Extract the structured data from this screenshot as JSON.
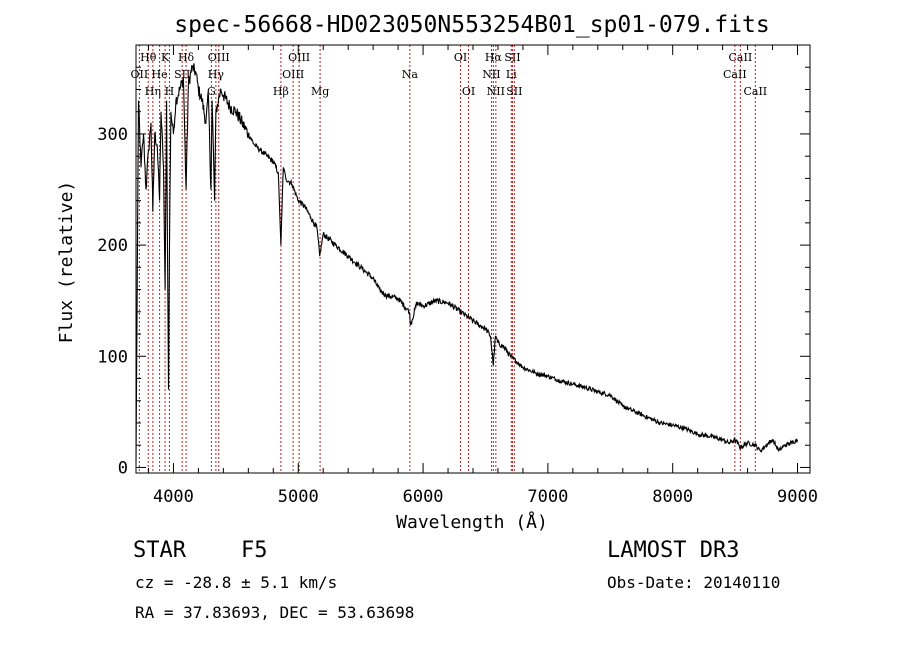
{
  "chart_data": {
    "type": "line",
    "title": "spec-56668-HD023050N553254B01_sp01-079.fits",
    "xlabel": "Wavelength (Å)",
    "ylabel": "Flux (relative)",
    "xlim": [
      3700,
      9100
    ],
    "ylim": [
      -5,
      380
    ],
    "xticks": [
      4000,
      5000,
      6000,
      7000,
      8000,
      9000
    ],
    "yticks": [
      0,
      100,
      200,
      300
    ],
    "grid": false,
    "line_color": "#000000",
    "marker_color": "#b22222",
    "series": [
      {
        "name": "spectrum",
        "x": [
          3700,
          3720,
          3740,
          3760,
          3780,
          3800,
          3820,
          3835,
          3850,
          3870,
          3889,
          3900,
          3920,
          3933,
          3945,
          3960,
          3968,
          3980,
          4000,
          4020,
          4050,
          4080,
          4101,
          4120,
          4150,
          4180,
          4200,
          4230,
          4260,
          4280,
          4300,
          4310,
          4330,
          4340,
          4360,
          4380,
          4400,
          4450,
          4500,
          4550,
          4600,
          4650,
          4700,
          4750,
          4800,
          4840,
          4861,
          4880,
          4900,
          4950,
          5000,
          5050,
          5100,
          5150,
          5172,
          5200,
          5300,
          5400,
          5500,
          5600,
          5650,
          5700,
          5800,
          5890,
          5900,
          5950,
          6000,
          6100,
          6200,
          6300,
          6400,
          6450,
          6500,
          6540,
          6563,
          6580,
          6600,
          6650,
          6700,
          6750,
          6800,
          6900,
          7000,
          7100,
          7200,
          7300,
          7400,
          7500,
          7600,
          7700,
          7800,
          7900,
          8000,
          8100,
          8200,
          8300,
          8400,
          8450,
          8500,
          8542,
          8600,
          8662,
          8700,
          8800,
          8850,
          8900,
          8950,
          9000
        ],
        "y": [
          5,
          330,
          270,
          300,
          250,
          285,
          310,
          230,
          300,
          290,
          240,
          320,
          270,
          160,
          330,
          70,
          200,
          320,
          300,
          330,
          340,
          350,
          250,
          345,
          360,
          355,
          340,
          330,
          310,
          335,
          250,
          330,
          240,
          320,
          330,
          340,
          335,
          325,
          320,
          310,
          300,
          290,
          285,
          280,
          275,
          265,
          200,
          270,
          260,
          255,
          240,
          235,
          225,
          215,
          190,
          210,
          200,
          190,
          180,
          170,
          160,
          155,
          152,
          140,
          128,
          148,
          145,
          150,
          148,
          140,
          132,
          128,
          125,
          118,
          92,
          118,
          112,
          108,
          100,
          95,
          90,
          85,
          82,
          78,
          75,
          72,
          68,
          65,
          55,
          50,
          45,
          40,
          38,
          35,
          30,
          28,
          25,
          22,
          25,
          18,
          22,
          20,
          15,
          25,
          15,
          20,
          22,
          25
        ]
      }
    ],
    "lines": [
      {
        "name": "OII",
        "x": 3727,
        "row": 1
      },
      {
        "name": "Hθ",
        "x": 3798,
        "row": 0
      },
      {
        "name": "Hη",
        "x": 3835,
        "row": 2
      },
      {
        "name": "He",
        "x": 3889,
        "row": 1
      },
      {
        "name": "K",
        "x": 3933,
        "row": 0
      },
      {
        "name": "H",
        "x": 3968,
        "row": 2
      },
      {
        "name": "SII",
        "x": 4070,
        "row": 1
      },
      {
        "name": "Hδ",
        "x": 4101,
        "row": 0
      },
      {
        "name": "G",
        "x": 4304,
        "row": 2
      },
      {
        "name": "Hγ",
        "x": 4340,
        "row": 1
      },
      {
        "name": "OIII",
        "x": 4363,
        "row": 0
      },
      {
        "name": "Hβ",
        "x": 4861,
        "row": 2
      },
      {
        "name": "OIII",
        "x": 4959,
        "row": 1
      },
      {
        "name": "OIII",
        "x": 5007,
        "row": 0
      },
      {
        "name": "Mg",
        "x": 5175,
        "row": 2
      },
      {
        "name": "Na",
        "x": 5894,
        "row": 1
      },
      {
        "name": "OI",
        "x": 6300,
        "row": 0
      },
      {
        "name": "OI",
        "x": 6364,
        "row": 2
      },
      {
        "name": "NII",
        "x": 6548,
        "row": 1
      },
      {
        "name": "Hα",
        "x": 6563,
        "row": 0
      },
      {
        "name": "NII",
        "x": 6583,
        "row": 2
      },
      {
        "name": "Li",
        "x": 6707,
        "row": 1
      },
      {
        "name": "SII",
        "x": 6716,
        "row": 0
      },
      {
        "name": "SII",
        "x": 6731,
        "row": 2
      },
      {
        "name": "CaII",
        "x": 8498,
        "row": 1
      },
      {
        "name": "CaII",
        "x": 8542,
        "row": 0
      },
      {
        "name": "CaII",
        "x": 8662,
        "row": 2
      }
    ]
  },
  "info": {
    "object_class": "STAR",
    "subclass": "F5",
    "survey": "LAMOST DR3",
    "cz": "cz = -28.8 ± 5.1 km/s",
    "obs_date": "Obs-Date: 20140110",
    "coords": "RA =  37.83693, DEC =  53.63698"
  }
}
